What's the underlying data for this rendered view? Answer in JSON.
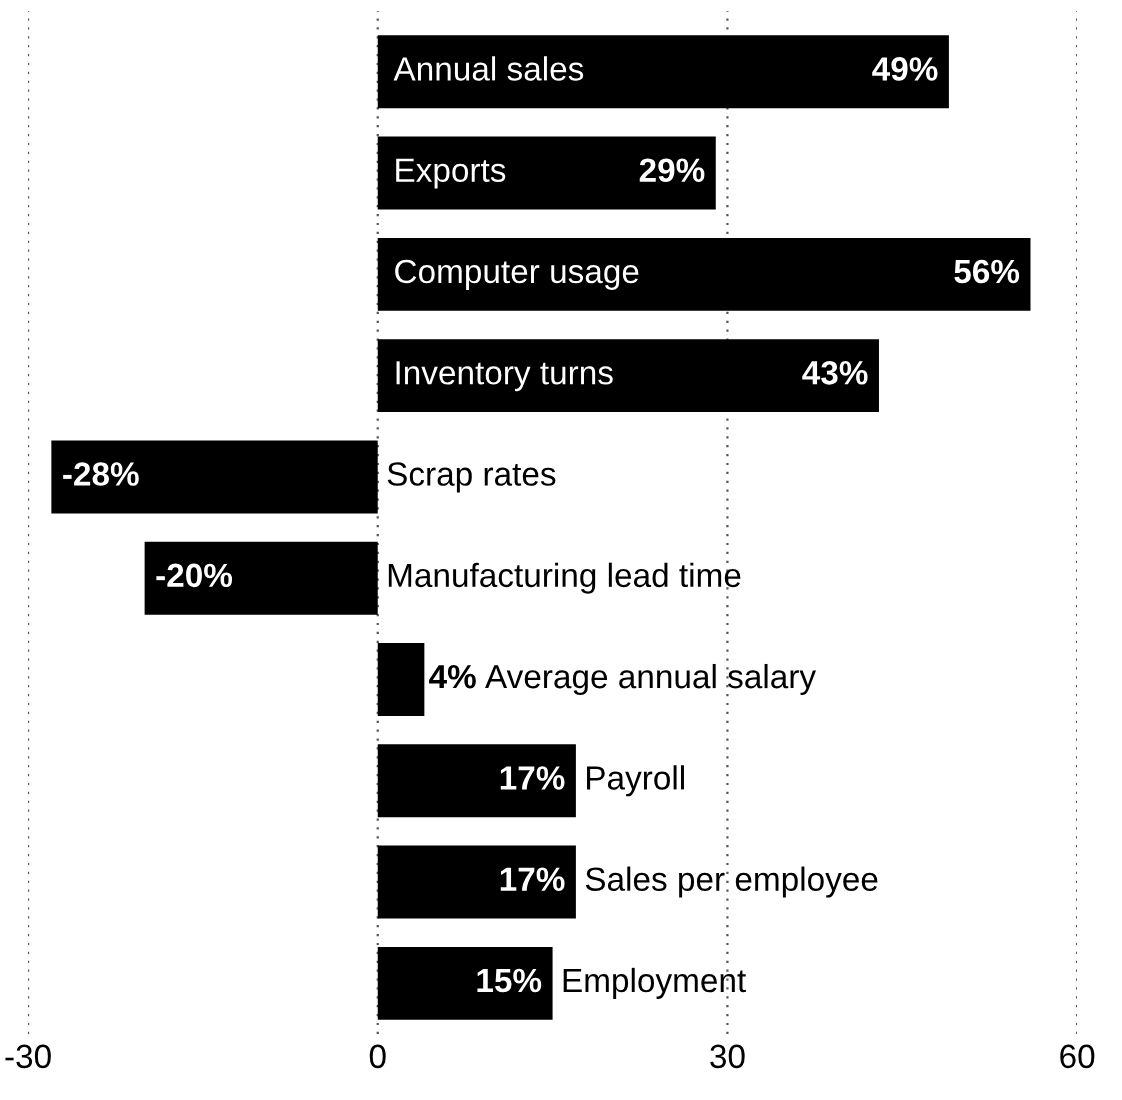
{
  "chart_data": {
    "type": "bar",
    "orientation": "horizontal",
    "categories": [
      "Annual sales",
      "Exports",
      "Computer usage",
      "Inventory turns",
      "Scrap rates",
      "Manufacturing lead time",
      "Average annual salary",
      "Payroll",
      "Sales per employee",
      "Employment"
    ],
    "values": [
      49,
      29,
      56,
      43,
      -28,
      -20,
      4,
      17,
      17,
      15
    ],
    "value_labels": [
      "49%",
      "29%",
      "56%",
      "43%",
      "-28%",
      "-20%",
      "4%",
      "17%",
      "17%",
      "15%"
    ],
    "color": "#000000",
    "xlim": [
      -30,
      60
    ],
    "xticks": [
      -30,
      0,
      30,
      60
    ],
    "grid": "x",
    "legend": false
  }
}
